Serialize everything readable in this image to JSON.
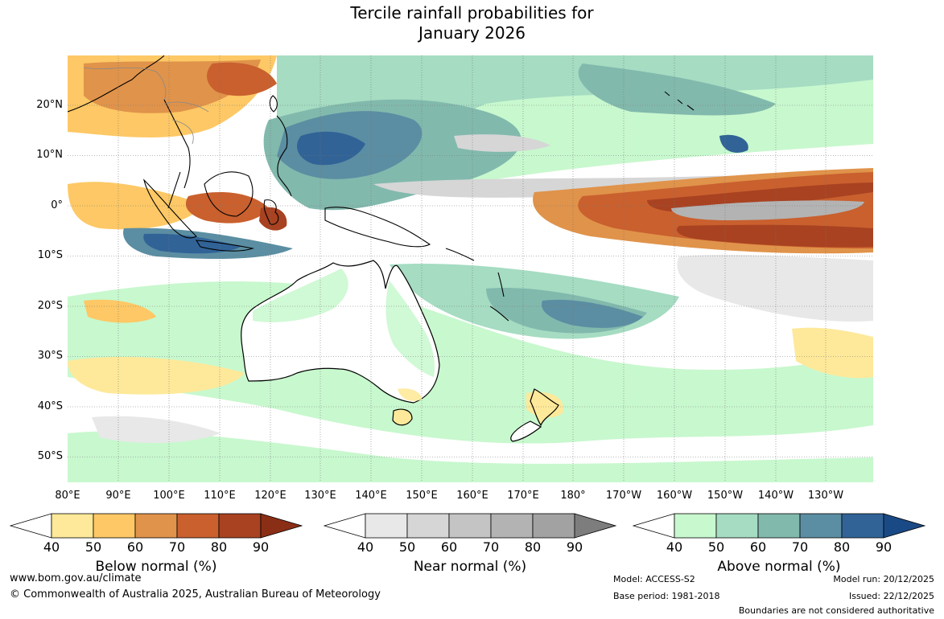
{
  "title": {
    "line1": "Tercile rainfall probabilities for",
    "line2": "January 2026"
  },
  "map": {
    "lat_labels": [
      "20°N",
      "10°N",
      "0°",
      "10°S",
      "20°S",
      "30°S",
      "40°S",
      "50°S"
    ],
    "lon_labels": [
      "80°E",
      "90°E",
      "100°E",
      "110°E",
      "120°E",
      "130°E",
      "140°E",
      "150°E",
      "160°E",
      "170°E",
      "180°",
      "170°W",
      "160°W",
      "150°W",
      "140°W",
      "130°W"
    ],
    "colors": {
      "coast": "#000000",
      "border": "#888888",
      "grid": "#777777"
    }
  },
  "legends": [
    {
      "caption": "Below normal (%)",
      "ticks": [
        "40",
        "50",
        "60",
        "70",
        "80",
        "90"
      ],
      "colors": [
        "#ffffff",
        "#fee99a",
        "#fdc865",
        "#e0934a",
        "#c9602e",
        "#a84221",
        "#8b2e16"
      ]
    },
    {
      "caption": "Near normal (%)",
      "ticks": [
        "40",
        "50",
        "60",
        "70",
        "80",
        "90"
      ],
      "colors": [
        "#ffffff",
        "#e8e8e8",
        "#d6d6d6",
        "#c4c4c4",
        "#b3b3b3",
        "#a2a2a2",
        "#7d7d7d"
      ]
    },
    {
      "caption": "Above normal (%)",
      "ticks": [
        "40",
        "50",
        "60",
        "70",
        "80",
        "90"
      ],
      "colors": [
        "#ffffff",
        "#c8f8ce",
        "#a5dcc2",
        "#82b9ad",
        "#5b8ea2",
        "#316397",
        "#1a4a85"
      ]
    }
  ],
  "footer": {
    "website": "www.bom.gov.au/climate",
    "copyright": "© Commonwealth of Australia 2025, Australian Bureau of Meteorology",
    "model": "Model: ACCESS-S2",
    "base_period": "Base period: 1981-2018",
    "model_run": "Model run: 20/12/2025",
    "issued": "Issued: 22/12/2025",
    "disclaimer": "Boundaries are not considered authoritative"
  }
}
